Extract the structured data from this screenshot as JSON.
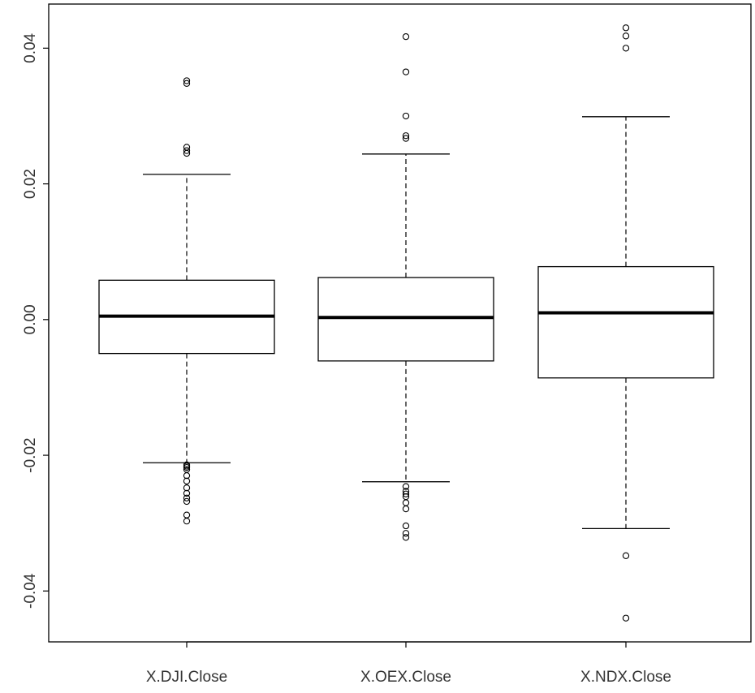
{
  "chart_data": {
    "type": "boxplot",
    "categories": [
      "X.DJI.Close",
      "X.OEX.Close",
      "X.NDX.Close"
    ],
    "series": [
      {
        "category": "X.DJI.Close",
        "whisker_low": -0.0211,
        "q1": -0.005,
        "median": 0.0005,
        "q3": 0.0058,
        "whisker_high": 0.0214,
        "outliers": [
          0.0352,
          0.0348,
          0.0254,
          0.0249,
          0.0245,
          -0.0214,
          -0.0216,
          -0.0218,
          -0.0221,
          -0.023,
          -0.0238,
          -0.0248,
          -0.0256,
          -0.0263,
          -0.0268,
          -0.0288,
          -0.0297
        ]
      },
      {
        "category": "X.OEX.Close",
        "whisker_low": -0.0239,
        "q1": -0.0061,
        "median": 0.0003,
        "q3": 0.0062,
        "whisker_high": 0.0244,
        "outliers": [
          0.0417,
          0.0365,
          0.03,
          0.0271,
          0.0267,
          -0.0246,
          -0.0253,
          -0.0257,
          -0.0261,
          -0.027,
          -0.0279,
          -0.0304,
          -0.0315,
          -0.0321
        ]
      },
      {
        "category": "X.NDX.Close",
        "whisker_low": -0.0308,
        "q1": -0.0086,
        "median": 0.001,
        "q3": 0.0078,
        "whisker_high": 0.0299,
        "outliers": [
          0.043,
          0.0418,
          0.04,
          -0.0348,
          -0.044
        ]
      }
    ],
    "y_ticks": [
      "-0.04",
      "-0.02",
      "0.00",
      "0.02",
      "0.04"
    ],
    "y_tick_values": [
      -0.04,
      -0.02,
      0.0,
      0.02,
      0.04
    ],
    "ylim": [
      -0.0475,
      0.0465
    ],
    "title": "",
    "xlabel": "",
    "ylabel": "",
    "grid": false,
    "colors": {
      "line": "#000000",
      "box_fill": "#ffffff",
      "text": "#333333"
    }
  }
}
